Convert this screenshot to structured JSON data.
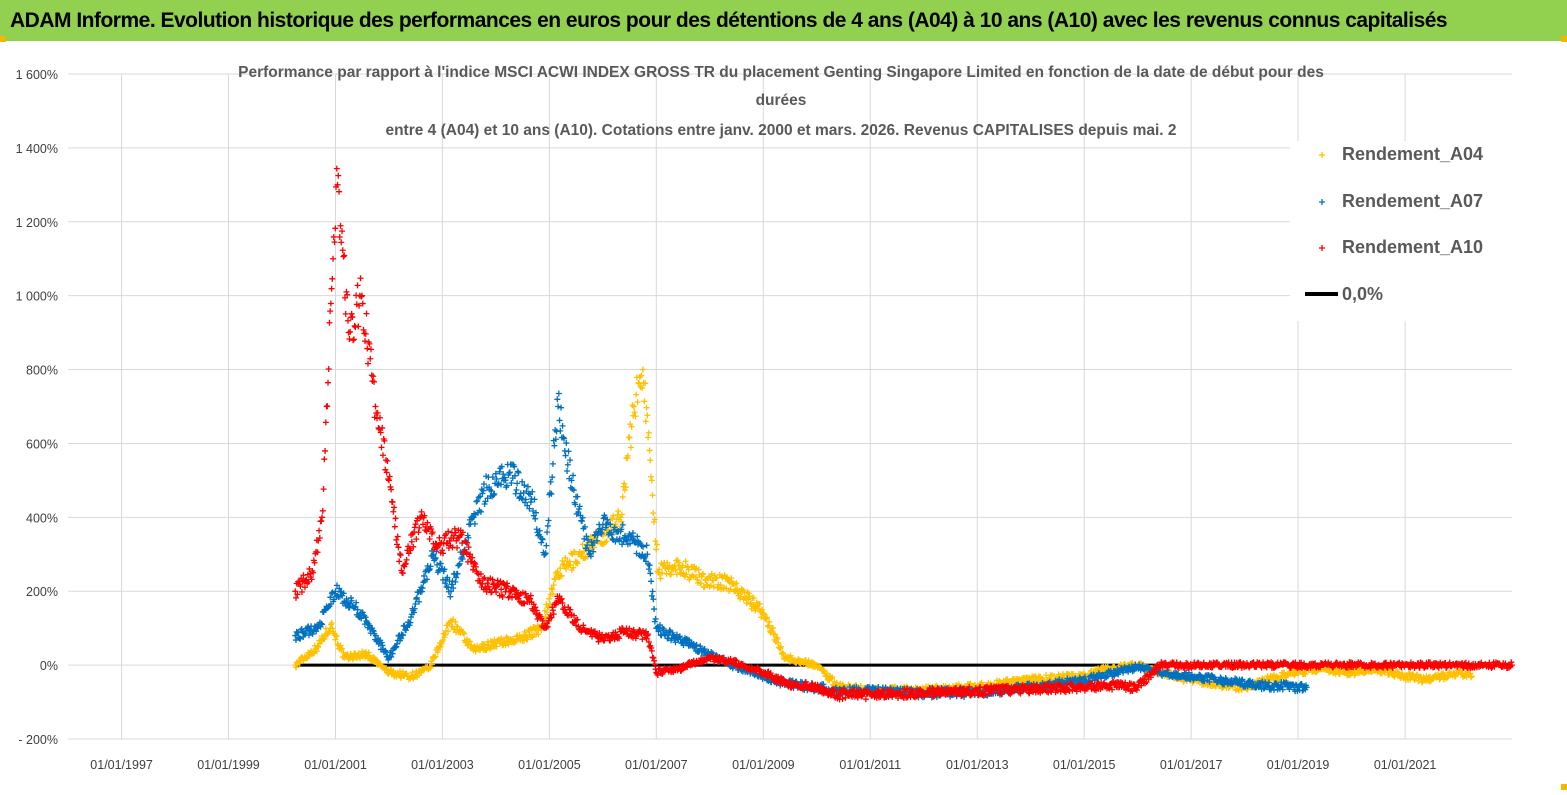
{
  "header": {
    "banner_title": "ADAM Informe. Evolution historique des performances en euros pour des détentions de 4 ans (A04) à 10 ans (A10) avec les revenus connus capitalisés"
  },
  "colors": {
    "banner_bg": "#92d050",
    "A04": "#ffc000",
    "A07": "#0070c0",
    "A10": "#ff0000",
    "zero_line": "#000000",
    "grid": "#d9d9d9"
  },
  "chart_data": {
    "type": "scatter",
    "title_lines": [
      "Performance par rapport à l'indice MSCI ACWI INDEX GROSS TR  du placement Genting Singapore Limited en fonction de la date de début pour des",
      "durées",
      "entre 4 (A04) et 10 ans (A10).  Cotations entre janv. 2000 et mars. 2026. Revenus CAPITALISES depuis mai. 2"
    ],
    "xlabel": "",
    "ylabel": "",
    "x_ticks": [
      "01/01/1997",
      "01/01/1999",
      "01/01/2001",
      "01/01/2003",
      "01/01/2005",
      "01/01/2007",
      "01/01/2009",
      "01/01/2011",
      "01/01/2013",
      "01/01/2015",
      "01/01/2017",
      "01/01/2019",
      "01/01/2021"
    ],
    "x_range": [
      "1996-01-01",
      "2023-01-01"
    ],
    "y_ticks": [
      "- 200%",
      "0%",
      "200%",
      "400%",
      "600%",
      "800%",
      "1 000%",
      "1 200%",
      "1 400%",
      "1 600%"
    ],
    "ylim": [
      -200,
      1600
    ],
    "grid": true,
    "legend_position": "top-right",
    "marker": "+",
    "series": [
      {
        "name": "Rendement_A04",
        "color": "#ffc000",
        "points": [
          [
            "2000-04-01",
            0
          ],
          [
            "2000-09-01",
            50
          ],
          [
            "2000-12-01",
            110
          ],
          [
            "2001-03-01",
            20
          ],
          [
            "2001-08-01",
            30
          ],
          [
            "2002-01-01",
            -20
          ],
          [
            "2002-06-01",
            -30
          ],
          [
            "2002-10-01",
            -10
          ],
          [
            "2003-03-01",
            120
          ],
          [
            "2003-08-01",
            40
          ],
          [
            "2004-01-01",
            60
          ],
          [
            "2004-06-01",
            70
          ],
          [
            "2004-11-01",
            100
          ],
          [
            "2005-03-01",
            250
          ],
          [
            "2005-08-01",
            300
          ],
          [
            "2006-01-01",
            350
          ],
          [
            "2006-05-01",
            400
          ],
          [
            "2006-08-01",
            700
          ],
          [
            "2006-10-01",
            800
          ],
          [
            "2006-12-01",
            500
          ],
          [
            "2007-01-15",
            250
          ],
          [
            "2007-06-01",
            270
          ],
          [
            "2007-12-01",
            230
          ],
          [
            "2008-06-01",
            220
          ],
          [
            "2009-01-01",
            140
          ],
          [
            "2009-06-01",
            20
          ],
          [
            "2010-01-01",
            0
          ],
          [
            "2010-06-01",
            -60
          ],
          [
            "2011-01-01",
            -70
          ],
          [
            "2012-01-01",
            -70
          ],
          [
            "2013-01-01",
            -60
          ],
          [
            "2014-01-01",
            -40
          ],
          [
            "2015-01-01",
            -30
          ],
          [
            "2015-06-01",
            -10
          ],
          [
            "2016-01-01",
            0
          ],
          [
            "2016-06-01",
            -20
          ],
          [
            "2017-01-01",
            -40
          ],
          [
            "2018-01-01",
            -60
          ],
          [
            "2018-06-01",
            -40
          ],
          [
            "2019-01-01",
            -20
          ],
          [
            "2019-06-01",
            -10
          ],
          [
            "2020-01-01",
            -20
          ],
          [
            "2020-06-01",
            -10
          ],
          [
            "2021-01-01",
            -30
          ],
          [
            "2021-06-01",
            -40
          ],
          [
            "2022-01-01",
            -20
          ],
          [
            "2022-04-01",
            -30
          ]
        ]
      },
      {
        "name": "Rendement_A07",
        "color": "#0070c0",
        "points": [
          [
            "2000-04-01",
            80
          ],
          [
            "2000-09-01",
            100
          ],
          [
            "2001-01-01",
            200
          ],
          [
            "2001-06-01",
            150
          ],
          [
            "2002-01-01",
            20
          ],
          [
            "2002-06-01",
            130
          ],
          [
            "2002-11-01",
            300
          ],
          [
            "2003-03-01",
            200
          ],
          [
            "2003-08-01",
            400
          ],
          [
            "2003-11-01",
            480
          ],
          [
            "2004-04-01",
            520
          ],
          [
            "2004-09-01",
            450
          ],
          [
            "2004-12-01",
            300
          ],
          [
            "2005-03-01",
            700
          ],
          [
            "2005-06-01",
            500
          ],
          [
            "2005-10-01",
            300
          ],
          [
            "2006-01-01",
            380
          ],
          [
            "2006-06-01",
            350
          ],
          [
            "2006-11-01",
            300
          ],
          [
            "2007-01-01",
            100
          ],
          [
            "2007-06-01",
            70
          ],
          [
            "2008-01-01",
            30
          ],
          [
            "2008-06-01",
            0
          ],
          [
            "2009-01-01",
            -30
          ],
          [
            "2009-06-01",
            -50
          ],
          [
            "2010-01-01",
            -60
          ],
          [
            "2010-06-01",
            -70
          ],
          [
            "2011-01-01",
            -70
          ],
          [
            "2012-01-01",
            -75
          ],
          [
            "2013-01-01",
            -75
          ],
          [
            "2014-01-01",
            -60
          ],
          [
            "2015-01-01",
            -40
          ],
          [
            "2015-08-01",
            -20
          ],
          [
            "2016-01-01",
            -5
          ],
          [
            "2016-06-01",
            -20
          ],
          [
            "2017-01-01",
            -30
          ],
          [
            "2018-01-01",
            -50
          ],
          [
            "2018-06-01",
            -55
          ],
          [
            "2019-01-01",
            -60
          ],
          [
            "2019-03-01",
            -60
          ]
        ]
      },
      {
        "name": "Rendement_A10",
        "color": "#ff0000",
        "points": [
          [
            "2000-04-01",
            200
          ],
          [
            "2000-08-01",
            250
          ],
          [
            "2000-10-01",
            400
          ],
          [
            "2000-11-01",
            700
          ],
          [
            "2000-12-15",
            1100
          ],
          [
            "2001-01-15",
            1300
          ],
          [
            "2001-04-01",
            900
          ],
          [
            "2001-07-01",
            1000
          ],
          [
            "2001-10-01",
            700
          ],
          [
            "2002-01-01",
            500
          ],
          [
            "2002-04-01",
            250
          ],
          [
            "2002-08-01",
            400
          ],
          [
            "2002-12-01",
            320
          ],
          [
            "2003-05-01",
            350
          ],
          [
            "2003-10-01",
            220
          ],
          [
            "2004-04-01",
            200
          ],
          [
            "2004-09-01",
            170
          ],
          [
            "2004-12-01",
            100
          ],
          [
            "2005-03-01",
            180
          ],
          [
            "2005-08-01",
            100
          ],
          [
            "2006-01-01",
            70
          ],
          [
            "2006-06-01",
            90
          ],
          [
            "2006-11-01",
            80
          ],
          [
            "2007-01-01",
            -20
          ],
          [
            "2007-06-01",
            -10
          ],
          [
            "2008-01-01",
            20
          ],
          [
            "2008-06-01",
            10
          ],
          [
            "2009-01-01",
            -20
          ],
          [
            "2009-06-01",
            -50
          ],
          [
            "2010-01-01",
            -60
          ],
          [
            "2010-06-01",
            -80
          ],
          [
            "2011-01-01",
            -80
          ],
          [
            "2012-01-01",
            -75
          ],
          [
            "2013-01-01",
            -70
          ],
          [
            "2014-01-01",
            -65
          ],
          [
            "2015-01-01",
            -60
          ],
          [
            "2015-06-01",
            -55
          ],
          [
            "2016-01-01",
            -60
          ],
          [
            "2016-06-01",
            0
          ],
          [
            "2023-01-01",
            0
          ]
        ]
      }
    ],
    "reference_line": {
      "name": "0,0%",
      "y": 0,
      "color": "#000000",
      "x_from": "2000-04-01",
      "x_to": "2023-01-01"
    }
  }
}
